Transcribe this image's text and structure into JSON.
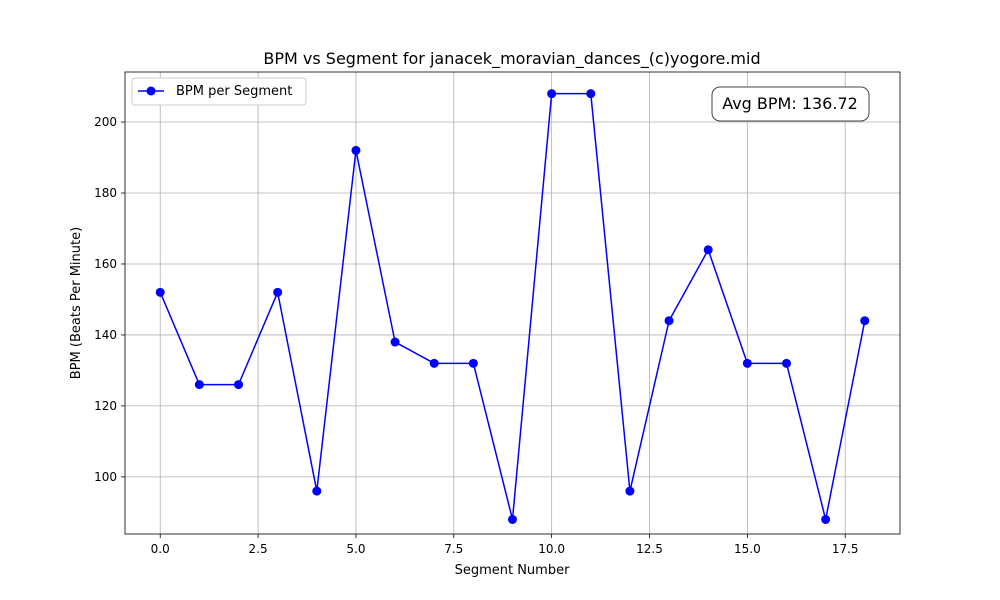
{
  "chart_data": {
    "type": "line",
    "title": "BPM vs Segment for janacek_moravian_dances_(c)yogore.mid",
    "xlabel": "Segment Number",
    "ylabel": "BPM (Beats Per Minute)",
    "xlim": [
      -0.9,
      18.9
    ],
    "ylim": [
      83.9,
      214.1
    ],
    "xticks": [
      0.0,
      2.5,
      5.0,
      7.5,
      10.0,
      12.5,
      15.0,
      17.5
    ],
    "xtick_labels": [
      "0.0",
      "2.5",
      "5.0",
      "7.5",
      "10.0",
      "12.5",
      "15.0",
      "17.5"
    ],
    "yticks": [
      100,
      120,
      140,
      160,
      180,
      200
    ],
    "ytick_labels": [
      "100",
      "120",
      "140",
      "160",
      "180",
      "200"
    ],
    "grid": true,
    "legend_position": "top-left",
    "series": [
      {
        "name": "BPM per Segment",
        "color": "#0000ff",
        "marker": "circle",
        "x": [
          0,
          1,
          2,
          3,
          4,
          5,
          6,
          7,
          8,
          9,
          10,
          11,
          12,
          13,
          14,
          15,
          16,
          17,
          18
        ],
        "y": [
          152,
          126,
          126,
          152,
          96,
          192,
          138,
          132,
          132,
          88,
          208,
          208,
          96,
          144,
          164,
          132,
          132,
          88,
          144
        ]
      }
    ],
    "annotation": "Avg BPM: 136.72"
  }
}
